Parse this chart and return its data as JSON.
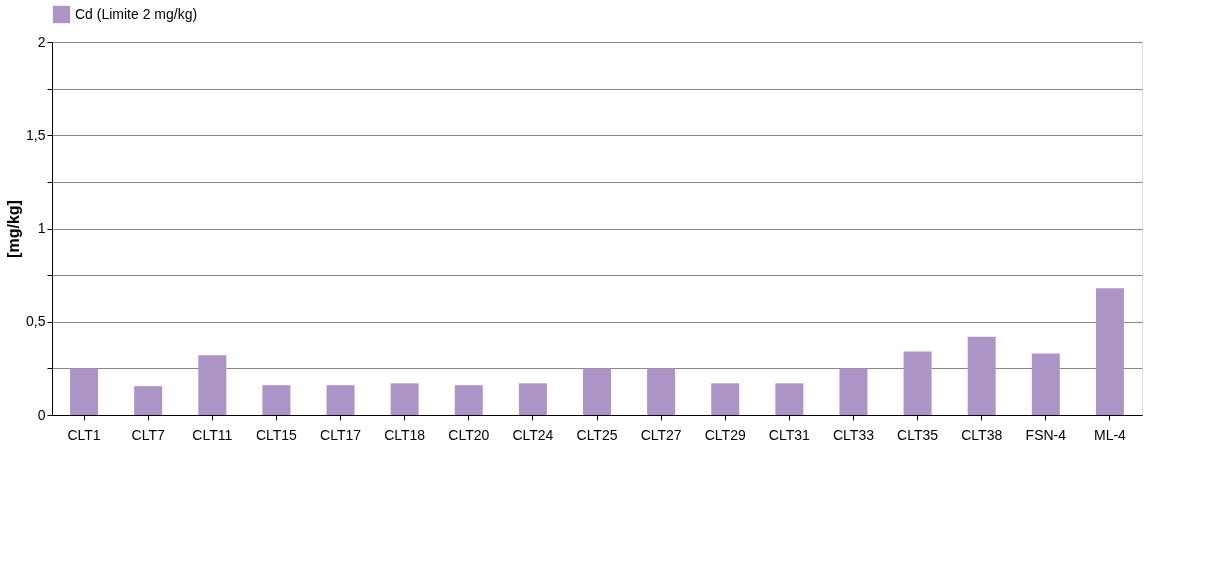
{
  "chart_data": {
    "type": "bar",
    "ylabel": "[mg/kg]",
    "categories": [
      "CLT1",
      "CLT7",
      "CLT11",
      "CLT15",
      "CLT17",
      "CLT18",
      "CLT20",
      "CLT24",
      "CLT25",
      "CLT27",
      "CLT29",
      "CLT31",
      "CLT33",
      "CLT35",
      "CLT38",
      "FSN-4",
      "ML-4"
    ],
    "series": [
      {
        "name": "Cd (Limite 2 mg/kg)",
        "color": "#ad94c6",
        "values": [
          0.25,
          0.155,
          0.32,
          0.16,
          0.16,
          0.17,
          0.16,
          0.17,
          0.25,
          0.25,
          0.17,
          0.17,
          0.25,
          0.34,
          0.42,
          0.33,
          0.68
        ]
      }
    ],
    "ylim": [
      0,
      2
    ],
    "yticks": [
      {
        "value": 0,
        "label": "0"
      },
      {
        "value": 0.25,
        "label": null
      },
      {
        "value": 0.5,
        "label": "0,5"
      },
      {
        "value": 0.75,
        "label": null
      },
      {
        "value": 1,
        "label": "1"
      },
      {
        "value": 1.25,
        "label": null
      },
      {
        "value": 1.5,
        "label": "1,5"
      },
      {
        "value": 1.75,
        "label": null
      },
      {
        "value": 2,
        "label": "2"
      }
    ],
    "grid": "y",
    "legend": "top"
  }
}
